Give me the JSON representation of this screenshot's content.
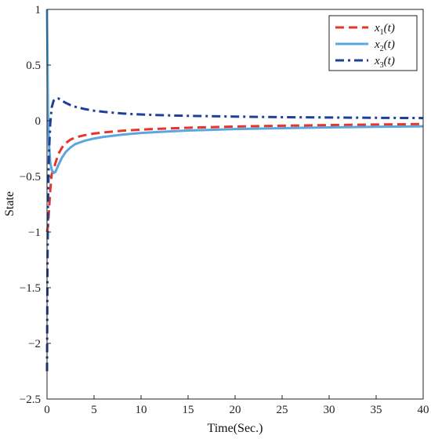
{
  "chart_data": {
    "type": "line",
    "title": "",
    "xlabel": "Time(Sec.)",
    "ylabel": "State",
    "xlim": [
      0,
      40
    ],
    "ylim": [
      -2.5,
      1
    ],
    "xticks": [
      0,
      5,
      10,
      15,
      20,
      25,
      30,
      35,
      40
    ],
    "yticks": [
      1,
      0.5,
      0,
      -0.5,
      -1,
      -1.5,
      -2,
      -2.5
    ],
    "ytick_labels": [
      "1",
      "0.5",
      "0",
      "−0.5",
      "−1",
      "−1.5",
      "−2",
      "−2.5"
    ],
    "grid": false,
    "legend_position": "top-right",
    "series": [
      {
        "name": "x1(t)",
        "legend": {
          "base": "x",
          "sub": "1",
          "suffix": "(t)"
        },
        "color": "#e8352b",
        "style": "dashed",
        "x": [
          0,
          0.1,
          0.2,
          0.35,
          0.5,
          0.7,
          0.9,
          1.2,
          1.6,
          2,
          2.5,
          3,
          4,
          5,
          6,
          8,
          10,
          12,
          15,
          20,
          25,
          30,
          35,
          40
        ],
        "y": [
          -1.0,
          -0.95,
          -0.82,
          -0.62,
          -0.48,
          -0.44,
          -0.38,
          -0.3,
          -0.24,
          -0.2,
          -0.17,
          -0.15,
          -0.13,
          -0.115,
          -0.105,
          -0.09,
          -0.08,
          -0.072,
          -0.063,
          -0.052,
          -0.045,
          -0.039,
          -0.034,
          -0.03
        ]
      },
      {
        "name": "x2(t)",
        "legend": {
          "base": "x",
          "sub": "2",
          "suffix": "(t)"
        },
        "color": "#5aa7de",
        "style": "solid",
        "x": [
          0,
          0.05,
          0.1,
          0.2,
          0.35,
          0.5,
          0.7,
          0.9,
          1.2,
          1.6,
          2,
          2.5,
          3,
          4,
          5,
          6,
          8,
          10,
          12,
          15,
          20,
          25,
          30,
          35,
          40
        ],
        "y": [
          1.0,
          0.6,
          0.1,
          -0.2,
          -0.38,
          -0.44,
          -0.47,
          -0.46,
          -0.4,
          -0.33,
          -0.28,
          -0.24,
          -0.21,
          -0.18,
          -0.16,
          -0.145,
          -0.125,
          -0.11,
          -0.1,
          -0.088,
          -0.075,
          -0.067,
          -0.06,
          -0.055,
          -0.05
        ]
      },
      {
        "name": "x3(t)",
        "legend": {
          "base": "x",
          "sub": "3",
          "suffix": "(t)"
        },
        "color": "#1f3f99",
        "style": "dashdot",
        "x": [
          0,
          0.05,
          0.1,
          0.2,
          0.35,
          0.5,
          0.7,
          0.9,
          1.2,
          1.6,
          2,
          2.5,
          3,
          4,
          5,
          6,
          8,
          10,
          12,
          15,
          20,
          25,
          30,
          35,
          40
        ],
        "y": [
          -2.25,
          -1.3,
          -0.8,
          -0.3,
          -0.02,
          0.12,
          0.18,
          0.2,
          0.2,
          0.18,
          0.16,
          0.14,
          0.125,
          0.105,
          0.09,
          0.08,
          0.065,
          0.056,
          0.05,
          0.044,
          0.037,
          0.032,
          0.029,
          0.026,
          0.024
        ]
      }
    ]
  }
}
